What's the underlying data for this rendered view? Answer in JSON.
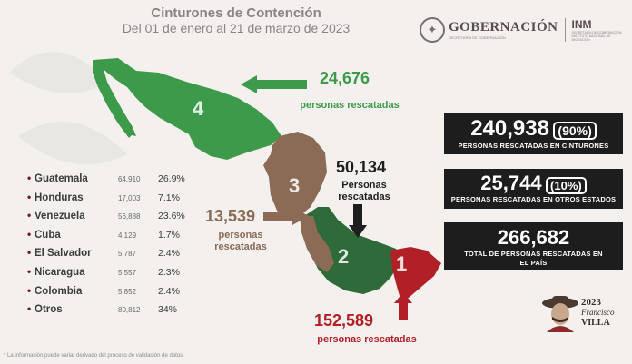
{
  "header": {
    "title": "Cinturones de Contención",
    "subtitle": "Del 01 de enero al 21 de marzo de 2023"
  },
  "logos": {
    "gobierno_name": "GOBERNACIÓN",
    "gobierno_sub": "SECRETARÍA DE GOBERNACIÓN",
    "inm_name": "INM",
    "inm_sub": "SECRETARÍA DE GOBERNACIÓN INSTITUTO NACIONAL DE MIGRACIÓN"
  },
  "map": {
    "regions": [
      {
        "number": "4",
        "color": "#3c9a4a"
      },
      {
        "number": "3",
        "color": "#8b6a56"
      },
      {
        "number": "2",
        "color": "#2f6b3a"
      },
      {
        "number": "1",
        "color": "#b11f27"
      }
    ]
  },
  "region_stats": [
    {
      "value": "24,676",
      "label": "personas rescatadas",
      "color": "#3c9a4a"
    },
    {
      "value": "50,134",
      "label": "Personas rescatadas",
      "color": "#1e1e1e"
    },
    {
      "value": "13,539",
      "label": "personas rescatadas",
      "color": "#8b6a56"
    },
    {
      "value": "152,589",
      "label": "personas rescatadas",
      "color": "#b11f27"
    }
  ],
  "summary": [
    {
      "value": "240,938",
      "pct": "(90%)",
      "label": "PERSONAS RESCATADAS EN CINTURONES"
    },
    {
      "value": "25,744",
      "pct": "(10%)",
      "label": "PERSONAS RESCATADAS EN OTROS ESTADOS"
    },
    {
      "value": "266,682",
      "label": "TOTAL DE PERSONAS RESCATADAS EN EL PAÍS"
    }
  ],
  "countries": [
    {
      "name": "Guatemala",
      "value": "64,910",
      "pct": "26.9%"
    },
    {
      "name": "Honduras",
      "value": "17,003",
      "pct": "7.1%"
    },
    {
      "name": "Venezuela",
      "value": "56,888",
      "pct": "23.6%"
    },
    {
      "name": "Cuba",
      "value": "4,129",
      "pct": "1.7%"
    },
    {
      "name": "El Salvador",
      "value": "5,787",
      "pct": "2.4%"
    },
    {
      "name": "Nicaragua",
      "value": "5,557",
      "pct": "2.3%"
    },
    {
      "name": "Colombia",
      "value": "5,852",
      "pct": "2.4%"
    },
    {
      "name": "Otros",
      "value": "80,812",
      "pct": "34%"
    }
  ],
  "footnote": "* La información puede variar derivado del proceso de validación de datos.",
  "francisco_villa": {
    "year": "2023",
    "line1": "Francisco",
    "line2": "VILLA"
  }
}
